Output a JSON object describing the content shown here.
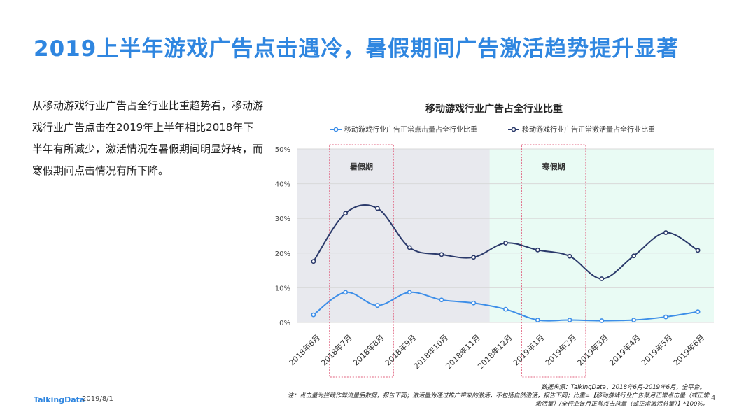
{
  "page": {
    "title": "2019上半年游戏广告点击遇冷，暑假期间广告激活趋势提升显著",
    "description": "从移动游戏行业广告占全行业比重趋势看，移动游戏行业广告点击在2019年上半年相比2018年下半年有所减少，激活情况在暑假期间明显好转，而寒假期间点击情况有所下降。",
    "source": "数据来源：TalkingData，2018年6月-2019年6月，全平台。",
    "note": "注：点击量为拦截作弊流量后数据，报告下同；激活量为通过推广带来的激活，不包括自然激活，报告下同；比重=【移动游戏行业广告某月正常点击量（或正常激活量）/全行业该月正常点击总量（或正常激活总量）】*100%。",
    "logo": "TalkingData",
    "date": "2019/8/1",
    "page_number": "4"
  },
  "colors": {
    "title": "#2f86e0",
    "click_series": "#3d8ee8",
    "activation_series": "#2b3a6b",
    "summer_band": "#e8e9ee",
    "winter_band": "#e9fbf4",
    "highlight_box": "#e0607e"
  },
  "chart_data": {
    "type": "line",
    "title": "移动游戏行业广告占全行业比重",
    "categories": [
      "2018年6月",
      "2018年7月",
      "2018年8月",
      "2018年9月",
      "2018年10月",
      "2018年11月",
      "2018年12月",
      "2019年1月",
      "2019年2月",
      "2019年3月",
      "2019年4月",
      "2019年5月",
      "2019年6月"
    ],
    "series": [
      {
        "name": "移动游戏行业广告正常点击量占全行业比重",
        "values": [
          2.2,
          8.7,
          4.9,
          8.7,
          6.5,
          5.6,
          3.8,
          0.7,
          0.7,
          0.5,
          0.7,
          1.6,
          3.1
        ]
      },
      {
        "name": "移动游戏行业广告正常激活量占全行业比重",
        "values": [
          17.6,
          31.5,
          32.9,
          21.6,
          19.6,
          18.8,
          22.9,
          20.9,
          19.1,
          12.6,
          19.2,
          25.9,
          20.8
        ]
      }
    ],
    "ylim": [
      0,
      50
    ],
    "yticks": [
      "0%",
      "10%",
      "20%",
      "30%",
      "40%",
      "50%"
    ],
    "legend": "top",
    "bands": [
      {
        "label": "",
        "from": "2018年6月",
        "to": "2018年12月"
      },
      {
        "label": "",
        "from": "2018年12月",
        "to": "2019年6月"
      }
    ],
    "annotations": [
      {
        "label": "暑假期",
        "from": "2018年7月",
        "to": "2018年8月"
      },
      {
        "label": "寒假期",
        "from": "2019年1月",
        "to": "2019年2月"
      }
    ]
  }
}
